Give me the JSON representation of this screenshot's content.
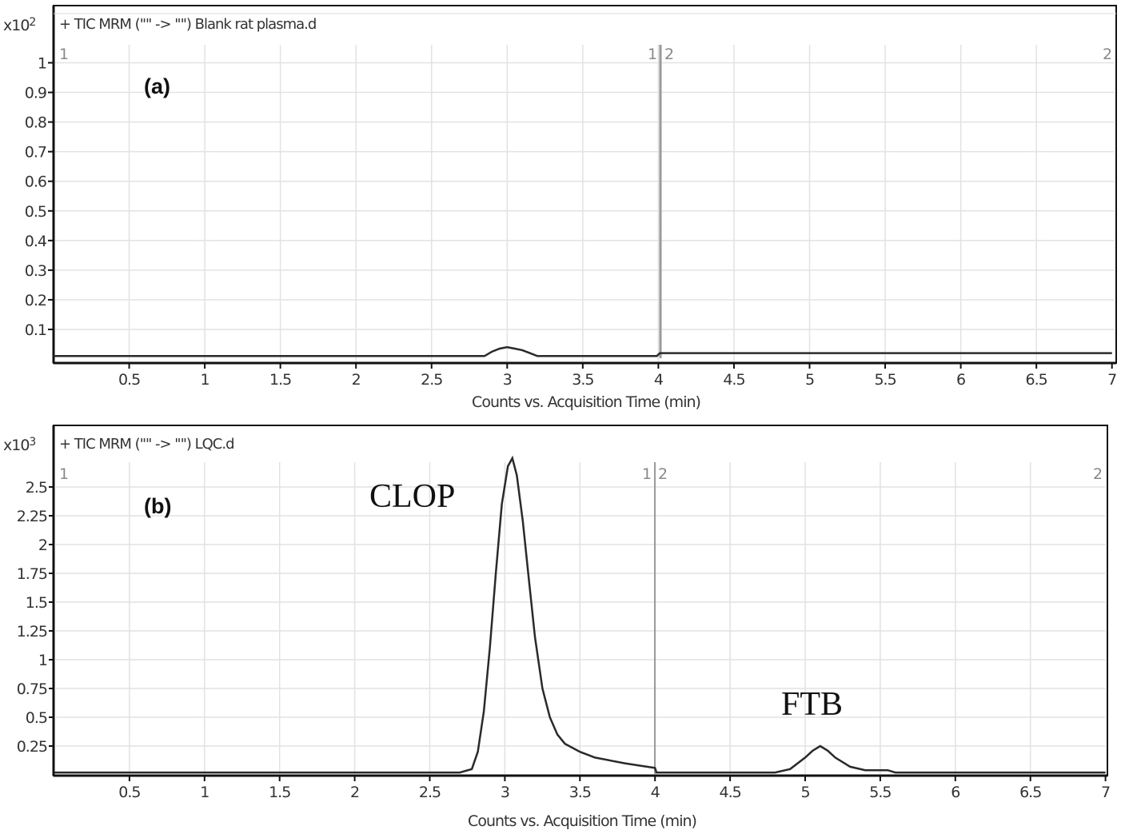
{
  "chart_data": [
    {
      "type": "line",
      "panel": "(a)",
      "title": "+ TIC MRM (\"\" -> \"\") Blank rat plasma.d",
      "y_multiplier": "x10 2",
      "xlabel": "Counts vs. Acquisition Time (min)",
      "ylabel": "",
      "xlim": [
        0,
        7
      ],
      "ylim": [
        0,
        1.05
      ],
      "x_ticks": [
        "0.5",
        "1",
        "1.5",
        "2",
        "2.5",
        "3",
        "3.5",
        "4",
        "4.5",
        "5",
        "5.5",
        "6",
        "6.5",
        "7"
      ],
      "y_ticks": [
        "0.1",
        "0.2",
        "0.3",
        "0.4",
        "0.5",
        "0.6",
        "0.7",
        "0.8",
        "0.9",
        "1"
      ],
      "grid": true,
      "segment_markers": {
        "left_start": "1",
        "left_end": "1",
        "right_start": "2",
        "right_end": "2",
        "divider_x": 4
      },
      "series": [
        {
          "name": "TIC Blank rat plasma",
          "x": [
            0.0,
            2.5,
            2.85,
            2.9,
            2.95,
            3.0,
            3.05,
            3.1,
            3.15,
            3.2,
            3.5,
            3.99,
            4.0,
            4.01,
            5.0,
            6.0,
            7.0
          ],
          "y": [
            0.01,
            0.01,
            0.01,
            0.025,
            0.035,
            0.04,
            0.035,
            0.03,
            0.02,
            0.01,
            0.01,
            0.01,
            0.015,
            0.02,
            0.02,
            0.02,
            0.02
          ]
        }
      ]
    },
    {
      "type": "line",
      "panel": "(b)",
      "title": "+ TIC MRM (\"\" -> \"\") LQC.d",
      "y_multiplier": "x10 3",
      "xlabel": "Counts vs. Acquisition Time (min)",
      "ylabel": "",
      "xlim": [
        0,
        7
      ],
      "ylim": [
        0,
        2.75
      ],
      "x_ticks": [
        "0.5",
        "1",
        "1.5",
        "2",
        "2.5",
        "3",
        "3.5",
        "4",
        "4.5",
        "5",
        "5.5",
        "6",
        "6.5",
        "7"
      ],
      "y_ticks": [
        "0.25",
        "0.5",
        "0.75",
        "1",
        "1.25",
        "1.5",
        "1.75",
        "2",
        "2.25",
        "2.5"
      ],
      "grid": true,
      "segment_markers": {
        "left_start": "1",
        "left_end": "1",
        "right_start": "2",
        "right_end": "2",
        "divider_x": 4
      },
      "annotations": [
        {
          "text": "CLOP",
          "x": 2.45,
          "y": 2.45
        },
        {
          "text": "FTB",
          "x": 4.85,
          "y": 0.6
        }
      ],
      "series": [
        {
          "name": "TIC LQC",
          "x": [
            0.0,
            2.7,
            2.78,
            2.82,
            2.86,
            2.9,
            2.94,
            2.98,
            3.02,
            3.05,
            3.08,
            3.12,
            3.16,
            3.2,
            3.25,
            3.3,
            3.35,
            3.4,
            3.5,
            3.6,
            3.8,
            4.0,
            4.01,
            4.8,
            4.9,
            5.0,
            5.05,
            5.1,
            5.15,
            5.2,
            5.3,
            5.4,
            5.55,
            5.6,
            7.0
          ],
          "y": [
            0.02,
            0.02,
            0.05,
            0.2,
            0.55,
            1.1,
            1.75,
            2.35,
            2.68,
            2.75,
            2.6,
            2.2,
            1.7,
            1.2,
            0.75,
            0.5,
            0.35,
            0.27,
            0.2,
            0.15,
            0.1,
            0.06,
            0.02,
            0.02,
            0.05,
            0.15,
            0.21,
            0.25,
            0.21,
            0.15,
            0.07,
            0.04,
            0.04,
            0.02,
            0.02
          ]
        }
      ]
    }
  ],
  "panels": {
    "a": {
      "tag": "(a)",
      "legend": "+ TIC MRM (\"\" -> \"\") Blank rat plasma.d",
      "multiplier_base": "x10",
      "multiplier_exp": "2",
      "xlabel": "Counts vs. Acquisition Time (min)",
      "seg_left_start": "1",
      "seg_left_end": "1",
      "seg_right_start": "2",
      "seg_right_end": "2"
    },
    "b": {
      "tag": "(b)",
      "legend": "+ TIC MRM (\"\" -> \"\") LQC.d",
      "multiplier_base": "x10",
      "multiplier_exp": "3",
      "xlabel": "Counts vs. Acquisition Time (min)",
      "seg_left_start": "1",
      "seg_left_end": "1",
      "seg_right_start": "2",
      "seg_right_end": "2",
      "peak1": "CLOP",
      "peak2": "FTB"
    }
  },
  "colors": {
    "trace": "#2a2a2a",
    "grid": "#e2e2e2",
    "frame": "#111111",
    "divider": "#9a9a9a"
  }
}
